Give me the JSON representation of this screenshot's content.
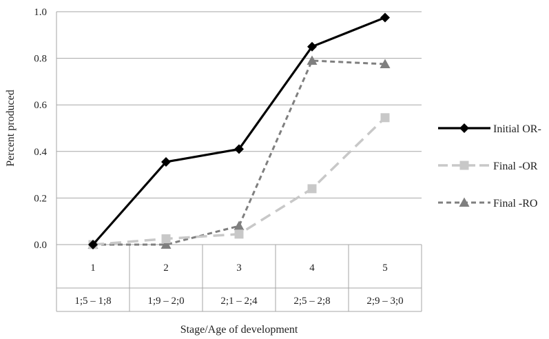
{
  "chart_data": {
    "type": "line",
    "categories": [
      "1",
      "2",
      "3",
      "4",
      "5"
    ],
    "category_sublabels": [
      "1;5 – 1;8",
      "1;9 – 2;0",
      "2;1 – 2;4",
      "2;5 – 2;8",
      "2;9 – 3;0"
    ],
    "series": [
      {
        "name": "Initial OR-",
        "values": [
          0.0,
          0.355,
          0.41,
          0.85,
          0.975
        ],
        "color": "#000000",
        "marker": "diamond",
        "line_style": "solid"
      },
      {
        "name": "Final -OR",
        "values": [
          0.0,
          0.025,
          0.045,
          0.24,
          0.545
        ],
        "color": "#c8c8c8",
        "marker": "square",
        "line_style": "dashed"
      },
      {
        "name": "Final -RO",
        "values": [
          0.0,
          0.0,
          0.08,
          0.79,
          0.775
        ],
        "color": "#7f7f7f",
        "marker": "triangle",
        "line_style": "dotted"
      }
    ],
    "y_ticks": [
      "0.0",
      "0.2",
      "0.4",
      "0.6",
      "0.8",
      "1.0"
    ],
    "ylim": [
      0,
      1.0
    ],
    "ylabel": "Percent produced",
    "xlabel": "Stage/Age of development",
    "grid": true,
    "legend_position": "right"
  }
}
